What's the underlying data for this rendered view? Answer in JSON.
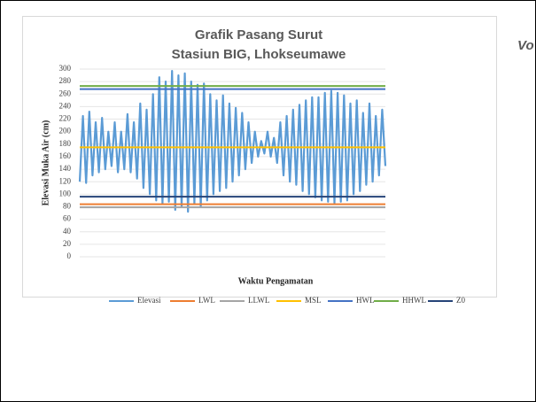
{
  "chart_data": {
    "type": "line",
    "title": "Grafik Pasang Surut",
    "subtitle": "Stasiun BIG, Lhokseumawe",
    "side_text": "Vo",
    "y_label": "Elevasi Muka Air  (cm)",
    "x_label": "Waktu Pengamatan",
    "ylim": [
      0,
      300
    ],
    "yticks": [
      0,
      20,
      40,
      60,
      80,
      100,
      120,
      140,
      160,
      180,
      200,
      220,
      240,
      260,
      280,
      300
    ],
    "grid": true,
    "legend": "bottom",
    "series": [
      {
        "name": "Elevasi",
        "color": "#5b9bd5",
        "values": [
          120,
          225,
          118,
          232,
          130,
          215,
          135,
          222,
          140,
          200,
          145,
          215,
          135,
          200,
          140,
          228,
          135,
          215,
          125,
          245,
          110,
          235,
          100,
          260,
          90,
          287,
          85,
          280,
          88,
          297,
          75,
          290,
          80,
          293,
          72,
          280,
          85,
          275,
          80,
          277,
          90,
          260,
          100,
          250,
          105,
          258,
          110,
          245,
          120,
          238,
          130,
          230,
          140,
          215,
          150,
          200,
          160,
          185,
          165,
          200,
          160,
          190,
          150,
          215,
          130,
          225,
          120,
          235,
          115,
          243,
          105,
          250,
          100,
          255,
          95,
          255,
          90,
          262,
          88,
          265,
          86,
          262,
          88,
          258,
          90,
          245,
          100,
          250,
          105,
          230,
          115,
          245,
          120,
          225,
          130,
          235,
          145
        ]
      },
      {
        "name": "LWL",
        "color": "#ed7d31",
        "value": 84
      },
      {
        "name": "LLWL",
        "color": "#a5a5a5",
        "value": 79
      },
      {
        "name": "MSL",
        "color": "#ffc000",
        "value": 175
      },
      {
        "name": "HWL",
        "color": "#4472c4",
        "value": 268
      },
      {
        "name": "HHWL",
        "color": "#70ad47",
        "value": 273
      },
      {
        "name": "Z0",
        "color": "#264478",
        "value": 96
      }
    ]
  }
}
